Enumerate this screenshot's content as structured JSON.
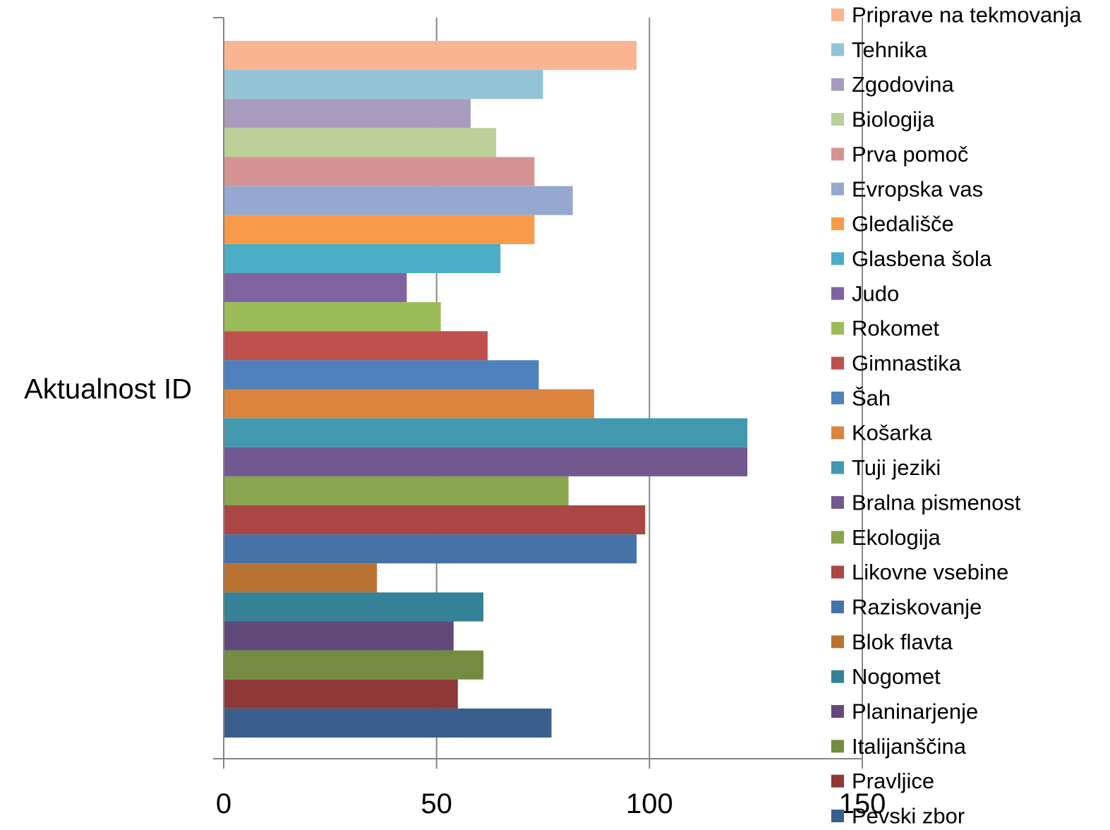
{
  "chart_data": {
    "type": "bar",
    "orientation": "horizontal",
    "title": "",
    "xlabel": "",
    "ylabel": "",
    "categories": [
      "Aktualnost ID"
    ],
    "xlim": [
      0,
      150
    ],
    "x_ticks": [
      "0",
      "50",
      "100",
      "150"
    ],
    "grid": "vertical gridlines",
    "legend_position": "right",
    "series": [
      {
        "name": "Priprave na tekmovanja",
        "value": 97,
        "color": "#F9B592"
      },
      {
        "name": "Tehnika",
        "value": 75,
        "color": "#93C4D6"
      },
      {
        "name": "Zgodovina",
        "value": 58,
        "color": "#A99BBE"
      },
      {
        "name": "Biologija",
        "value": 64,
        "color": "#BAD096"
      },
      {
        "name": "Prva pomoč",
        "value": 73,
        "color": "#D49392"
      },
      {
        "name": "Evropska vas",
        "value": 82,
        "color": "#95A9D0"
      },
      {
        "name": "Gledališče",
        "value": 73,
        "color": "#F79A4A"
      },
      {
        "name": "Glasbena šola",
        "value": 65,
        "color": "#4BADC6"
      },
      {
        "name": "Judo",
        "value": 43,
        "color": "#8064A2"
      },
      {
        "name": "Rokomet",
        "value": 51,
        "color": "#9BBB59"
      },
      {
        "name": "Gimnastika",
        "value": 62,
        "color": "#C0504D"
      },
      {
        "name": "Šah",
        "value": 74,
        "color": "#4F81BD"
      },
      {
        "name": "Košarka",
        "value": 87,
        "color": "#DB843D"
      },
      {
        "name": "Tuji jeziki",
        "value": 123,
        "color": "#4198AF"
      },
      {
        "name": "Bralna pismenost",
        "value": 123,
        "color": "#71588F"
      },
      {
        "name": "Ekologija",
        "value": 81,
        "color": "#89A54E"
      },
      {
        "name": "Likovne vsebine",
        "value": 99,
        "color": "#AA4643"
      },
      {
        "name": "Raziskovanje",
        "value": 97,
        "color": "#4572A7"
      },
      {
        "name": "Blok flavta",
        "value": 36,
        "color": "#B87333"
      },
      {
        "name": "Nogomet",
        "value": 61,
        "color": "#358296"
      },
      {
        "name": "Planinarjenje",
        "value": 54,
        "color": "#614A7A"
      },
      {
        "name": "Italijanščina",
        "value": 61,
        "color": "#738C40"
      },
      {
        "name": "Pravljice",
        "value": 55,
        "color": "#8E3937"
      },
      {
        "name": "Pevski zbor",
        "value": 77,
        "color": "#3A5F8C"
      }
    ]
  }
}
